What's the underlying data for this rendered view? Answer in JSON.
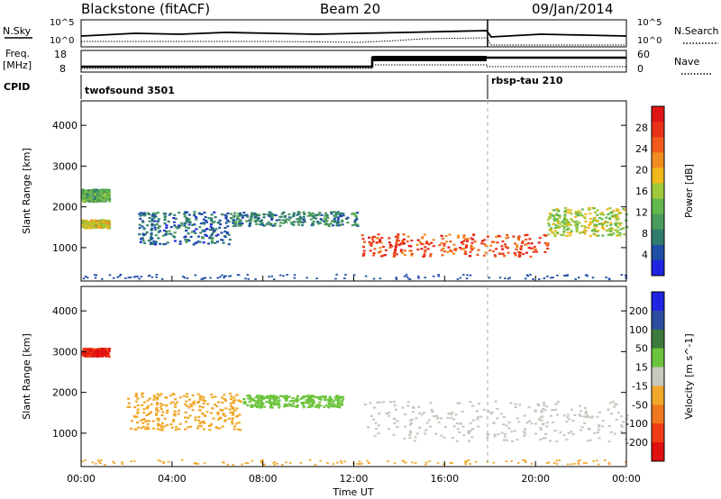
{
  "header": {
    "station": "Blackstone (fitACF)",
    "beam": "Beam 20",
    "date": "09/Jan/2014"
  },
  "top_panels": {
    "nsky_label": "N.Sky",
    "nsearch_label": "N.Search",
    "nsky_ticks": [
      "10^5",
      "10^0"
    ],
    "nsearch_ticks": [
      "10^5",
      "10^0"
    ],
    "freq_label": "Freq.",
    "freq_unit": "[MHz]",
    "freq_ticks": [
      "18",
      "8"
    ],
    "nave_label": "Nave",
    "nave_ticks": [
      "60",
      "0"
    ],
    "cpid_label": "CPID",
    "cpid_segments": [
      {
        "start_hour": 0,
        "end_hour": 18,
        "name": "twofsound 3501"
      },
      {
        "start_hour": 18,
        "end_hour": 24,
        "name": "rbsp-tau 210"
      }
    ]
  },
  "chart_data": [
    {
      "type": "heatmap",
      "panel": "power",
      "ylabel": "Slant Range [km]",
      "xlabel": "Time UT",
      "x_ticks": [
        "00:00",
        "04:00",
        "08:00",
        "12:00",
        "16:00",
        "20:00",
        "00:00"
      ],
      "xlim_hours": [
        0,
        24
      ],
      "ylim_km": [
        180,
        4600
      ],
      "y_ticks": [
        1000,
        2000,
        3000,
        4000
      ],
      "colorbar": {
        "label": "Power [dB]",
        "range": [
          0,
          32
        ],
        "ticks": [
          4,
          8,
          12,
          16,
          20,
          24,
          28
        ],
        "colors": [
          "#1f24e0",
          "#1f4ea8",
          "#2f7c6e",
          "#4a9a5a",
          "#62b84a",
          "#a0c93a",
          "#f2b81a",
          "#f08c1e",
          "#f05a1c",
          "#e83218",
          "#e01414"
        ]
      },
      "features": [
        {
          "desc": "ionospheric scatter band",
          "t_start": 0.0,
          "t_end": 1.2,
          "range_start": 1500,
          "range_end": 1700,
          "level": 18
        },
        {
          "desc": "ionospheric scatter band",
          "t_start": 0.0,
          "t_end": 1.2,
          "range_start": 2150,
          "range_end": 2450,
          "level": 12
        },
        {
          "desc": "scatter arc",
          "t_start": 2.5,
          "t_end": 6.5,
          "range_start": 1100,
          "range_end": 1900,
          "level": 6
        },
        {
          "desc": "scatter band",
          "t_start": 6.5,
          "t_end": 12.2,
          "range_start": 1550,
          "range_end": 1900,
          "level": 8
        },
        {
          "desc": "strong scatter band",
          "t_start": 12.3,
          "t_end": 20.5,
          "range_start": 800,
          "range_end": 1350,
          "level": 26
        },
        {
          "desc": "scatter band",
          "t_start": 20.5,
          "t_end": 24.0,
          "range_start": 1300,
          "range_end": 2000,
          "level": 16
        }
      ]
    },
    {
      "type": "heatmap",
      "panel": "velocity",
      "ylabel": "Slant Range [km]",
      "xlabel": "Time UT",
      "x_ticks": [
        "00:00",
        "04:00",
        "08:00",
        "12:00",
        "16:00",
        "20:00",
        "00:00"
      ],
      "xlim_hours": [
        0,
        24
      ],
      "ylim_km": [
        180,
        4600
      ],
      "y_ticks": [
        1000,
        2000,
        3000,
        4000
      ],
      "colorbar": {
        "label": "Velocity [m s^-1]",
        "range": [
          -250,
          250
        ],
        "ticks": [
          200,
          100,
          50,
          15,
          -15,
          -50,
          -100,
          -200
        ],
        "colors": [
          "#1f24e0",
          "#2c4ea0",
          "#3c7a3c",
          "#6cc43c",
          "#c8c8c0",
          "#f0a82a",
          "#f0781c",
          "#f03c14",
          "#e01010"
        ]
      },
      "features": [
        {
          "desc": "toward radar",
          "t_start": 0.0,
          "t_end": 1.2,
          "range_start": 2900,
          "range_end": 3100,
          "level": -200
        },
        {
          "desc": "away flow",
          "t_start": 2.0,
          "t_end": 7.0,
          "range_start": 1100,
          "range_end": 2000,
          "level": -60
        },
        {
          "desc": "green band",
          "t_start": 7.0,
          "t_end": 11.5,
          "range_start": 1650,
          "range_end": 1950,
          "level": 60
        },
        {
          "desc": "ground scatter",
          "t_start": 12.3,
          "t_end": 24.0,
          "range_start": 800,
          "range_end": 1800,
          "level": 0
        }
      ]
    }
  ],
  "xlabel": "Time UT"
}
